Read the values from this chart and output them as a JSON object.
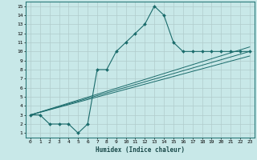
{
  "xlabel": "Humidex (Indice chaleur)",
  "background_color": "#c8e8e8",
  "grid_color": "#b0cccc",
  "line_color": "#1a6b6b",
  "xlim": [
    -0.5,
    23.5
  ],
  "ylim": [
    0.5,
    15.5
  ],
  "xticks": [
    0,
    1,
    2,
    3,
    4,
    5,
    6,
    7,
    8,
    9,
    10,
    11,
    12,
    13,
    14,
    15,
    16,
    17,
    18,
    19,
    20,
    21,
    22,
    23
  ],
  "yticks": [
    1,
    2,
    3,
    4,
    5,
    6,
    7,
    8,
    9,
    10,
    11,
    12,
    13,
    14,
    15
  ],
  "main_line": {
    "x": [
      0,
      1,
      2,
      3,
      4,
      5,
      6,
      7,
      8,
      9,
      10,
      11,
      12,
      13,
      14,
      15,
      16,
      17,
      18,
      19,
      20,
      21,
      22,
      23
    ],
    "y": [
      3,
      3,
      2,
      2,
      2,
      1,
      2,
      8,
      8,
      10,
      11,
      12,
      13,
      15,
      14,
      11,
      10,
      10,
      10,
      10,
      10,
      10,
      10,
      10
    ]
  },
  "diagonal_lines": [
    {
      "x": [
        0,
        23
      ],
      "y": [
        3,
        10.5
      ]
    },
    {
      "x": [
        0,
        23
      ],
      "y": [
        3,
        10.0
      ]
    },
    {
      "x": [
        0,
        23
      ],
      "y": [
        3,
        9.5
      ]
    }
  ]
}
